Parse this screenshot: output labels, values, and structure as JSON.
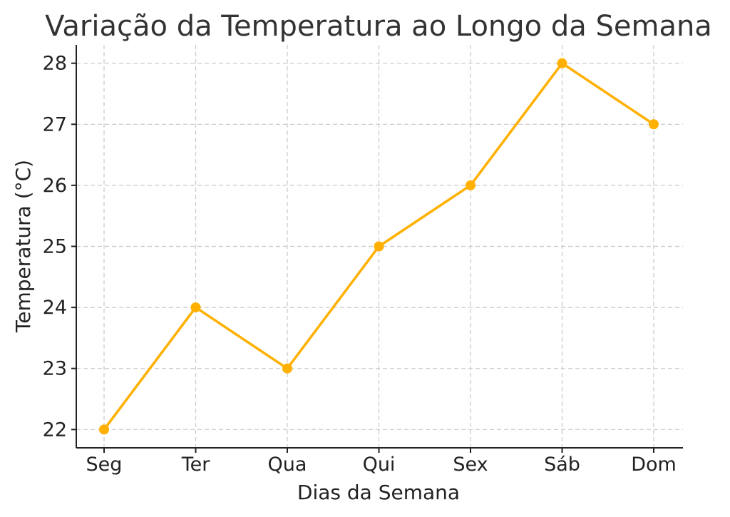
{
  "chart_data": {
    "type": "line",
    "title": "Variação da Temperatura ao Longo da Semana",
    "xlabel": "Dias da Semana",
    "ylabel": "Temperatura (°C)",
    "categories": [
      "Seg",
      "Ter",
      "Qua",
      "Qui",
      "Sex",
      "Sáb",
      "Dom"
    ],
    "series": [
      {
        "values": [
          22,
          24,
          23,
          25,
          26,
          28,
          27
        ],
        "color": "#FFB000",
        "marker": "circle"
      }
    ],
    "ylim": [
      21.7,
      28.3
    ],
    "yticks": [
      22,
      23,
      24,
      25,
      26,
      27,
      28
    ],
    "ytick_labels": [
      "22",
      "23",
      "24",
      "25",
      "26",
      "27",
      "28"
    ],
    "grid": true,
    "grid_style": "dashed"
  }
}
